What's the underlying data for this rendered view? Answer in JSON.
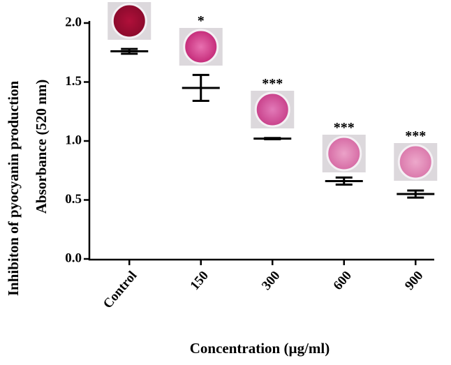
{
  "chart_data": {
    "type": "dot",
    "y_label": "Inhibiton of pyocyanin production",
    "y_label_inner": "Absorbance (520 nm)",
    "x_label": "Concentration (µg/ml)",
    "categories": [
      "Control",
      "150",
      "300",
      "600",
      "900"
    ],
    "values": [
      1.76,
      1.45,
      1.02,
      0.66,
      0.55
    ],
    "errors": [
      0.02,
      0.11,
      0.005,
      0.03,
      0.03
    ],
    "annotations": [
      null,
      "*",
      "***",
      "***",
      "***"
    ],
    "color": "#000000",
    "ylim": [
      0,
      2.0
    ],
    "yticks": [
      {
        "value": 0,
        "label": "0.0"
      },
      {
        "value": 0.5,
        "label": "0.5"
      },
      {
        "value": 1.0,
        "label": "1.0"
      },
      {
        "value": 1.5,
        "label": "1.5"
      },
      {
        "value": 2.0,
        "label": "2.0"
      }
    ]
  }
}
